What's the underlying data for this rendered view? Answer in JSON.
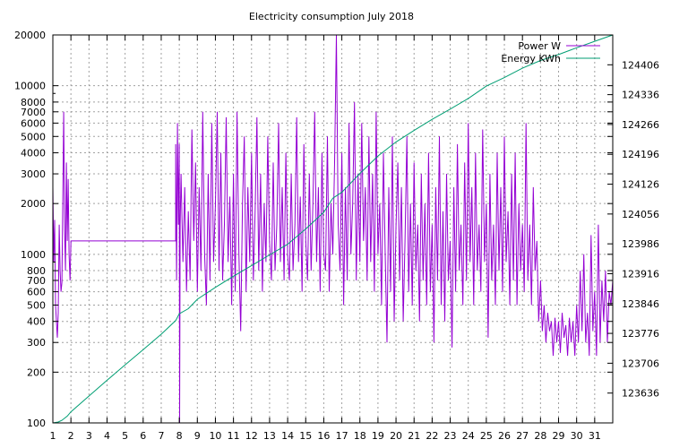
{
  "chart_data": {
    "type": "line",
    "title": "Electricity consumption July 2018",
    "xlabel": "",
    "ylabel": "",
    "y2label": "",
    "x_ticks": [
      1,
      2,
      3,
      4,
      5,
      6,
      7,
      8,
      9,
      10,
      11,
      12,
      13,
      14,
      15,
      16,
      17,
      18,
      19,
      20,
      21,
      22,
      23,
      24,
      25,
      26,
      27,
      28,
      29,
      30,
      31
    ],
    "xlim": [
      1,
      32
    ],
    "y_scale": "log",
    "ylim": [
      100,
      20000
    ],
    "y_ticks": [
      100,
      200,
      300,
      400,
      500,
      600,
      700,
      800,
      1000,
      2000,
      3000,
      4000,
      5000,
      6000,
      7000,
      8000,
      10000,
      20000
    ],
    "y2lim": [
      123566,
      124476
    ],
    "y2_ticks": [
      123636,
      123706,
      123776,
      123846,
      123916,
      123986,
      124056,
      124126,
      124196,
      124266,
      124336,
      124406
    ],
    "grid": true,
    "legend_position": "top-right",
    "series": [
      {
        "name": "Power W",
        "axis": "left",
        "color": "#9400d3",
        "points": [
          [
            1.0,
            2500
          ],
          [
            1.05,
            900
          ],
          [
            1.1,
            1600
          ],
          [
            1.15,
            500
          ],
          [
            1.2,
            400
          ],
          [
            1.25,
            320
          ],
          [
            1.3,
            450
          ],
          [
            1.35,
            1500
          ],
          [
            1.4,
            800
          ],
          [
            1.45,
            600
          ],
          [
            1.5,
            680
          ],
          [
            1.55,
            2100
          ],
          [
            1.6,
            7000
          ],
          [
            1.65,
            1400
          ],
          [
            1.7,
            800
          ],
          [
            1.75,
            3500
          ],
          [
            1.8,
            1200
          ],
          [
            1.85,
            2800
          ],
          [
            1.9,
            1000
          ],
          [
            1.95,
            700
          ],
          [
            2.0,
            1200
          ],
          [
            7.8,
            1200
          ],
          [
            7.8,
            4500
          ],
          [
            7.85,
            700
          ],
          [
            7.9,
            6000
          ],
          [
            7.95,
            1500
          ],
          [
            8.0,
            4500
          ],
          [
            8.02,
            100
          ],
          [
            8.05,
            1500
          ],
          [
            8.1,
            3000
          ],
          [
            8.2,
            900
          ],
          [
            8.3,
            2500
          ],
          [
            8.4,
            600
          ],
          [
            8.5,
            1800
          ],
          [
            8.6,
            700
          ],
          [
            8.7,
            5500
          ],
          [
            8.8,
            1200
          ],
          [
            8.9,
            3500
          ],
          [
            9.0,
            600
          ],
          [
            9.1,
            2500
          ],
          [
            9.2,
            800
          ],
          [
            9.3,
            7000
          ],
          [
            9.4,
            1000
          ],
          [
            9.5,
            500
          ],
          [
            9.6,
            3000
          ],
          [
            9.7,
            700
          ],
          [
            9.8,
            6000
          ],
          [
            9.9,
            900
          ],
          [
            10.0,
            2000
          ],
          [
            10.1,
            7000
          ],
          [
            10.2,
            800
          ],
          [
            10.3,
            4000
          ],
          [
            10.4,
            700
          ],
          [
            10.5,
            1500
          ],
          [
            10.6,
            6500
          ],
          [
            10.7,
            900
          ],
          [
            10.8,
            2200
          ],
          [
            10.9,
            500
          ],
          [
            11.0,
            3000
          ],
          [
            11.1,
            600
          ],
          [
            11.2,
            7000
          ],
          [
            11.3,
            1000
          ],
          [
            11.4,
            350
          ],
          [
            11.5,
            2000
          ],
          [
            11.6,
            5000
          ],
          [
            11.7,
            600
          ],
          [
            11.8,
            2500
          ],
          [
            11.9,
            900
          ],
          [
            12.0,
            4000
          ],
          [
            12.1,
            700
          ],
          [
            12.2,
            1800
          ],
          [
            12.3,
            6500
          ],
          [
            12.4,
            800
          ],
          [
            12.5,
            3000
          ],
          [
            12.6,
            600
          ],
          [
            12.7,
            2000
          ],
          [
            12.8,
            900
          ],
          [
            12.9,
            5000
          ],
          [
            13.0,
            1200
          ],
          [
            13.1,
            700
          ],
          [
            13.2,
            3500
          ],
          [
            13.3,
            800
          ],
          [
            13.4,
            1500
          ],
          [
            13.5,
            6000
          ],
          [
            13.6,
            900
          ],
          [
            13.7,
            2500
          ],
          [
            13.8,
            700
          ],
          [
            13.9,
            4000
          ],
          [
            14.0,
            1000
          ],
          [
            14.1,
            700
          ],
          [
            14.2,
            3000
          ],
          [
            14.3,
            800
          ],
          [
            14.4,
            1500
          ],
          [
            14.5,
            6500
          ],
          [
            14.6,
            900
          ],
          [
            14.7,
            2200
          ],
          [
            14.8,
            600
          ],
          [
            14.9,
            4500
          ],
          [
            15.0,
            1200
          ],
          [
            15.1,
            700
          ],
          [
            15.2,
            3000
          ],
          [
            15.3,
            800
          ],
          [
            15.4,
            2000
          ],
          [
            15.5,
            7000
          ],
          [
            15.6,
            900
          ],
          [
            15.7,
            2500
          ],
          [
            15.8,
            600
          ],
          [
            15.9,
            4000
          ],
          [
            16.0,
            1000
          ],
          [
            16.1,
            800
          ],
          [
            16.2,
            5000
          ],
          [
            16.3,
            600
          ],
          [
            16.4,
            2000
          ],
          [
            16.5,
            1000
          ],
          [
            16.6,
            3500
          ],
          [
            16.7,
            20000
          ],
          [
            16.8,
            1500
          ],
          [
            16.9,
            800
          ],
          [
            17.0,
            4000
          ],
          [
            17.1,
            500
          ],
          [
            17.2,
            2500
          ],
          [
            17.3,
            700
          ],
          [
            17.4,
            6000
          ],
          [
            17.5,
            1000
          ],
          [
            17.6,
            2000
          ],
          [
            17.7,
            8000
          ],
          [
            17.8,
            700
          ],
          [
            17.9,
            3000
          ],
          [
            18.0,
            900
          ],
          [
            18.1,
            6000
          ],
          [
            18.2,
            1200
          ],
          [
            18.3,
            2500
          ],
          [
            18.4,
            700
          ],
          [
            18.5,
            5000
          ],
          [
            18.6,
            900
          ],
          [
            18.7,
            3000
          ],
          [
            18.8,
            600
          ],
          [
            18.9,
            7000
          ],
          [
            19.0,
            1000
          ],
          [
            19.1,
            2000
          ],
          [
            19.2,
            500
          ],
          [
            19.3,
            4000
          ],
          [
            19.4,
            1000
          ],
          [
            19.5,
            300
          ],
          [
            19.6,
            2500
          ],
          [
            19.7,
            600
          ],
          [
            19.8,
            5000
          ],
          [
            19.9,
            400
          ],
          [
            20.0,
            1500
          ],
          [
            20.1,
            3500
          ],
          [
            20.2,
            700
          ],
          [
            20.3,
            2500
          ],
          [
            20.4,
            400
          ],
          [
            20.5,
            1200
          ],
          [
            20.6,
            5000
          ],
          [
            20.7,
            600
          ],
          [
            20.8,
            2000
          ],
          [
            20.9,
            500
          ],
          [
            21.0,
            3500
          ],
          [
            21.1,
            800
          ],
          [
            21.2,
            1500
          ],
          [
            21.3,
            400
          ],
          [
            21.4,
            3000
          ],
          [
            21.5,
            700
          ],
          [
            21.6,
            2000
          ],
          [
            21.7,
            500
          ],
          [
            21.8,
            4000
          ],
          [
            21.9,
            600
          ],
          [
            22.0,
            1500
          ],
          [
            22.1,
            300
          ],
          [
            22.2,
            2500
          ],
          [
            22.3,
            700
          ],
          [
            22.4,
            5000
          ],
          [
            22.5,
            500
          ],
          [
            22.6,
            1800
          ],
          [
            22.7,
            400
          ],
          [
            22.8,
            3000
          ],
          [
            22.9,
            700
          ],
          [
            23.0,
            1200
          ],
          [
            23.1,
            280
          ],
          [
            23.2,
            2500
          ],
          [
            23.3,
            600
          ],
          [
            23.4,
            4500
          ],
          [
            23.5,
            800
          ],
          [
            23.6,
            1500
          ],
          [
            23.7,
            500
          ],
          [
            23.8,
            3500
          ],
          [
            23.9,
            700
          ],
          [
            24.0,
            6000
          ],
          [
            24.1,
            900
          ],
          [
            24.2,
            2500
          ],
          [
            24.3,
            500
          ],
          [
            24.4,
            4000
          ],
          [
            24.5,
            800
          ],
          [
            24.6,
            1500
          ],
          [
            24.7,
            600
          ],
          [
            24.8,
            5500
          ],
          [
            24.9,
            900
          ],
          [
            25.0,
            2000
          ],
          [
            25.1,
            320
          ],
          [
            25.2,
            3000
          ],
          [
            25.3,
            700
          ],
          [
            25.4,
            1500
          ],
          [
            25.5,
            500
          ],
          [
            25.6,
            4000
          ],
          [
            25.7,
            800
          ],
          [
            25.8,
            2500
          ],
          [
            25.9,
            600
          ],
          [
            26.0,
            5000
          ],
          [
            26.1,
            900
          ],
          [
            26.2,
            1800
          ],
          [
            26.3,
            500
          ],
          [
            26.4,
            3000
          ],
          [
            26.5,
            700
          ],
          [
            26.6,
            4000
          ],
          [
            26.7,
            500
          ],
          [
            26.8,
            2000
          ],
          [
            26.9,
            800
          ],
          [
            27.0,
            1500
          ],
          [
            27.1,
            600
          ],
          [
            27.2,
            6000
          ],
          [
            27.3,
            700
          ],
          [
            27.4,
            1500
          ],
          [
            27.5,
            500
          ],
          [
            27.6,
            2500
          ],
          [
            27.7,
            800
          ],
          [
            27.8,
            1200
          ],
          [
            27.9,
            400
          ],
          [
            28.0,
            700
          ],
          [
            28.1,
            350
          ],
          [
            28.2,
            500
          ],
          [
            28.3,
            300
          ],
          [
            28.4,
            450
          ],
          [
            28.5,
            350
          ],
          [
            28.6,
            400
          ],
          [
            28.7,
            250
          ],
          [
            28.8,
            420
          ],
          [
            28.9,
            300
          ],
          [
            29.0,
            400
          ],
          [
            29.1,
            260
          ],
          [
            29.2,
            450
          ],
          [
            29.3,
            320
          ],
          [
            29.4,
            380
          ],
          [
            29.5,
            250
          ],
          [
            29.6,
            420
          ],
          [
            29.7,
            300
          ],
          [
            29.8,
            400
          ],
          [
            29.9,
            250
          ],
          [
            30.0,
            500
          ],
          [
            30.1,
            300
          ],
          [
            30.2,
            800
          ],
          [
            30.3,
            350
          ],
          [
            30.4,
            1000
          ],
          [
            30.5,
            300
          ],
          [
            30.6,
            450
          ],
          [
            30.7,
            250
          ],
          [
            30.8,
            1300
          ],
          [
            30.9,
            350
          ],
          [
            31.0,
            600
          ],
          [
            31.1,
            250
          ],
          [
            31.2,
            1500
          ],
          [
            31.3,
            300
          ],
          [
            31.4,
            700
          ],
          [
            31.5,
            400
          ],
          [
            31.6,
            800
          ],
          [
            31.7,
            300
          ],
          [
            31.8,
            600
          ],
          [
            31.9,
            500
          ],
          [
            32.0,
            700
          ]
        ]
      },
      {
        "name": "Energy KWh",
        "axis": "right",
        "color": "#009e73",
        "points": [
          [
            1.0,
            123566
          ],
          [
            1.3,
            123568
          ],
          [
            1.5,
            123572
          ],
          [
            1.8,
            123582
          ],
          [
            2.0,
            123592
          ],
          [
            3.0,
            123629
          ],
          [
            4.0,
            123666
          ],
          [
            5.0,
            123702
          ],
          [
            6.0,
            123738
          ],
          [
            7.0,
            123774
          ],
          [
            7.8,
            123806
          ],
          [
            8.0,
            123822
          ],
          [
            8.5,
            123834
          ],
          [
            9.0,
            123856
          ],
          [
            10.0,
            123884
          ],
          [
            11.0,
            123910
          ],
          [
            12.0,
            123935
          ],
          [
            13.0,
            123960
          ],
          [
            14.0,
            123985
          ],
          [
            15.0,
            124021
          ],
          [
            16.0,
            124060
          ],
          [
            16.5,
            124093
          ],
          [
            17.0,
            124107
          ],
          [
            18.0,
            124151
          ],
          [
            19.0,
            124192
          ],
          [
            20.0,
            124225
          ],
          [
            21.0,
            124252
          ],
          [
            22.0,
            124278
          ],
          [
            23.0,
            124302
          ],
          [
            24.0,
            124327
          ],
          [
            25.0,
            124356
          ],
          [
            26.0,
            124376
          ],
          [
            27.0,
            124398
          ],
          [
            28.0,
            124416
          ],
          [
            29.0,
            124430
          ],
          [
            30.0,
            124446
          ],
          [
            31.0,
            124461
          ],
          [
            32.0,
            124476
          ]
        ]
      }
    ]
  }
}
